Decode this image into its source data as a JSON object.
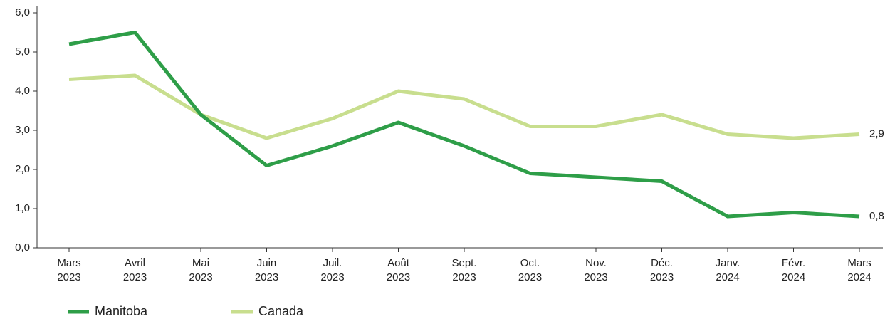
{
  "chart_data": {
    "type": "line",
    "categories": [
      "Mars 2023",
      "Avril 2023",
      "Mai 2023",
      "Juin 2023",
      "Juil. 2023",
      "Août 2023",
      "Sept. 2023",
      "Oct. 2023",
      "Nov. 2023",
      "Déc. 2023",
      "Janv. 2024",
      "Févr. 2024",
      "Mars 2024"
    ],
    "series": [
      {
        "name": "Manitoba",
        "color": "#2e9e48",
        "values": [
          5.2,
          5.5,
          3.4,
          2.1,
          2.6,
          3.2,
          2.6,
          1.9,
          1.8,
          1.7,
          0.8,
          0.9,
          0.8
        ],
        "value_labels": [
          null,
          null,
          null,
          null,
          null,
          null,
          null,
          null,
          null,
          null,
          null,
          null,
          "0,8"
        ]
      },
      {
        "name": "Canada",
        "color": "#c8de8e",
        "values": [
          4.3,
          4.4,
          3.4,
          2.8,
          3.3,
          4.0,
          3.8,
          3.1,
          3.1,
          3.4,
          2.9,
          2.8,
          2.9
        ],
        "value_labels": [
          null,
          null,
          null,
          null,
          null,
          null,
          null,
          null,
          null,
          null,
          null,
          null,
          "2,9"
        ]
      }
    ],
    "ylim": [
      0,
      6
    ],
    "yticks": [
      {
        "value": 0,
        "label": "0,0"
      },
      {
        "value": 1,
        "label": "1,0"
      },
      {
        "value": 2,
        "label": "2,0"
      },
      {
        "value": 3,
        "label": "3,0"
      },
      {
        "value": 4,
        "label": "4,0"
      },
      {
        "value": 5,
        "label": "5,0"
      },
      {
        "value": 6,
        "label": "6,0"
      }
    ],
    "grid": false,
    "legend": "bottom-left"
  }
}
